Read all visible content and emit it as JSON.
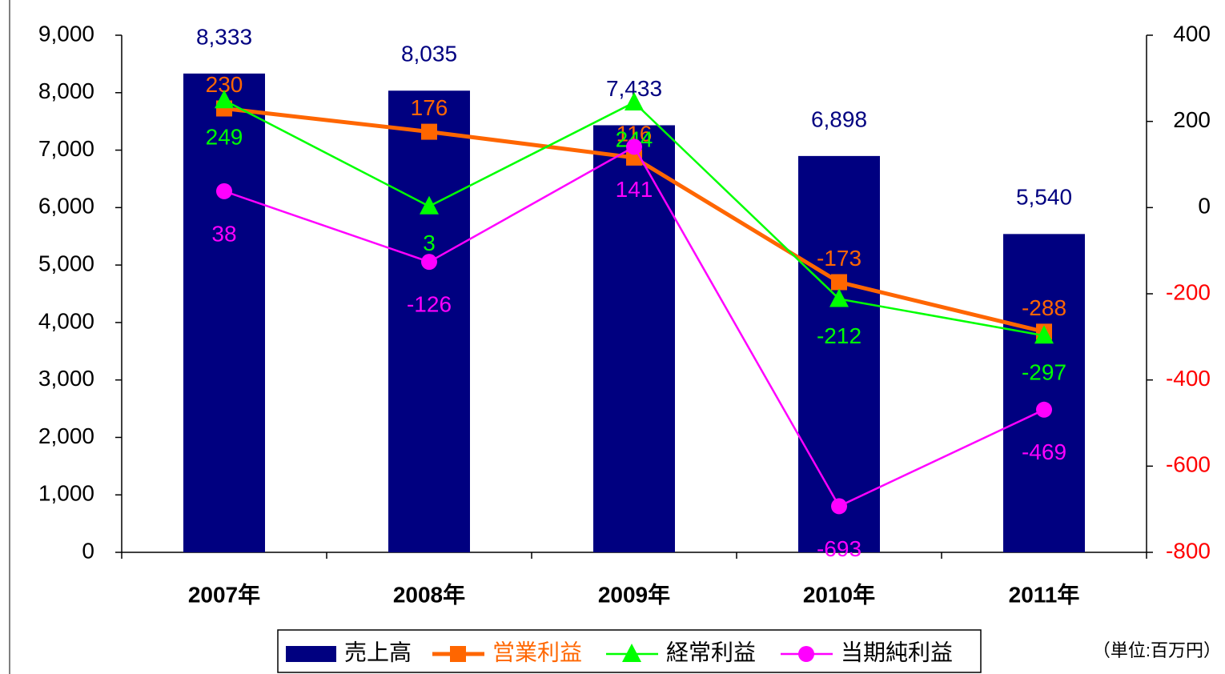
{
  "chart_data": {
    "type": "bar_line",
    "categories": [
      "2007年",
      "2008年",
      "2009年",
      "2010年",
      "2011年"
    ],
    "series": [
      {
        "name": "売上高",
        "type": "bar",
        "color": "#000080",
        "axis": "y",
        "values": [
          8333,
          8035,
          7433,
          6898,
          5540
        ],
        "value_labels": [
          "8,333",
          "8,035",
          "7,433",
          "6,898",
          "5,540"
        ]
      },
      {
        "name": "営業利益",
        "type": "line",
        "marker": "square",
        "color": "#ff6600",
        "legend_text_color": "#ff6600",
        "axis": "y2",
        "values": [
          230,
          176,
          116,
          -173,
          -288
        ]
      },
      {
        "name": "経常利益",
        "type": "line",
        "marker": "triangle",
        "color": "#00ff00",
        "axis": "y2",
        "values": [
          249,
          3,
          244,
          -212,
          -297
        ]
      },
      {
        "name": "当期純利益",
        "type": "line",
        "marker": "circle",
        "color": "#ff00ff",
        "axis": "y2",
        "values": [
          38,
          -126,
          141,
          -693,
          -469
        ]
      }
    ],
    "ylim": [
      0,
      9000
    ],
    "yticks": [
      0,
      {
        "value": 1000,
        "label": "1,000"
      },
      {
        "value": 2000,
        "label": "2,000"
      },
      {
        "value": 3000,
        "label": "3,000"
      },
      {
        "value": 4000,
        "label": "4,000"
      },
      {
        "value": 5000,
        "label": "5,000"
      },
      {
        "value": 6000,
        "label": "6,000"
      },
      {
        "value": 7000,
        "label": "7,000"
      },
      {
        "value": 8000,
        "label": "8,000"
      },
      {
        "value": 9000,
        "label": "9,000"
      }
    ],
    "y2lim": [
      -800,
      400
    ],
    "y2ticks": [
      -800,
      -600,
      -400,
      -200,
      0,
      200,
      400
    ],
    "y2ticks_negative_color": "#ff0000",
    "unit_note": "（単位:百万円）"
  }
}
